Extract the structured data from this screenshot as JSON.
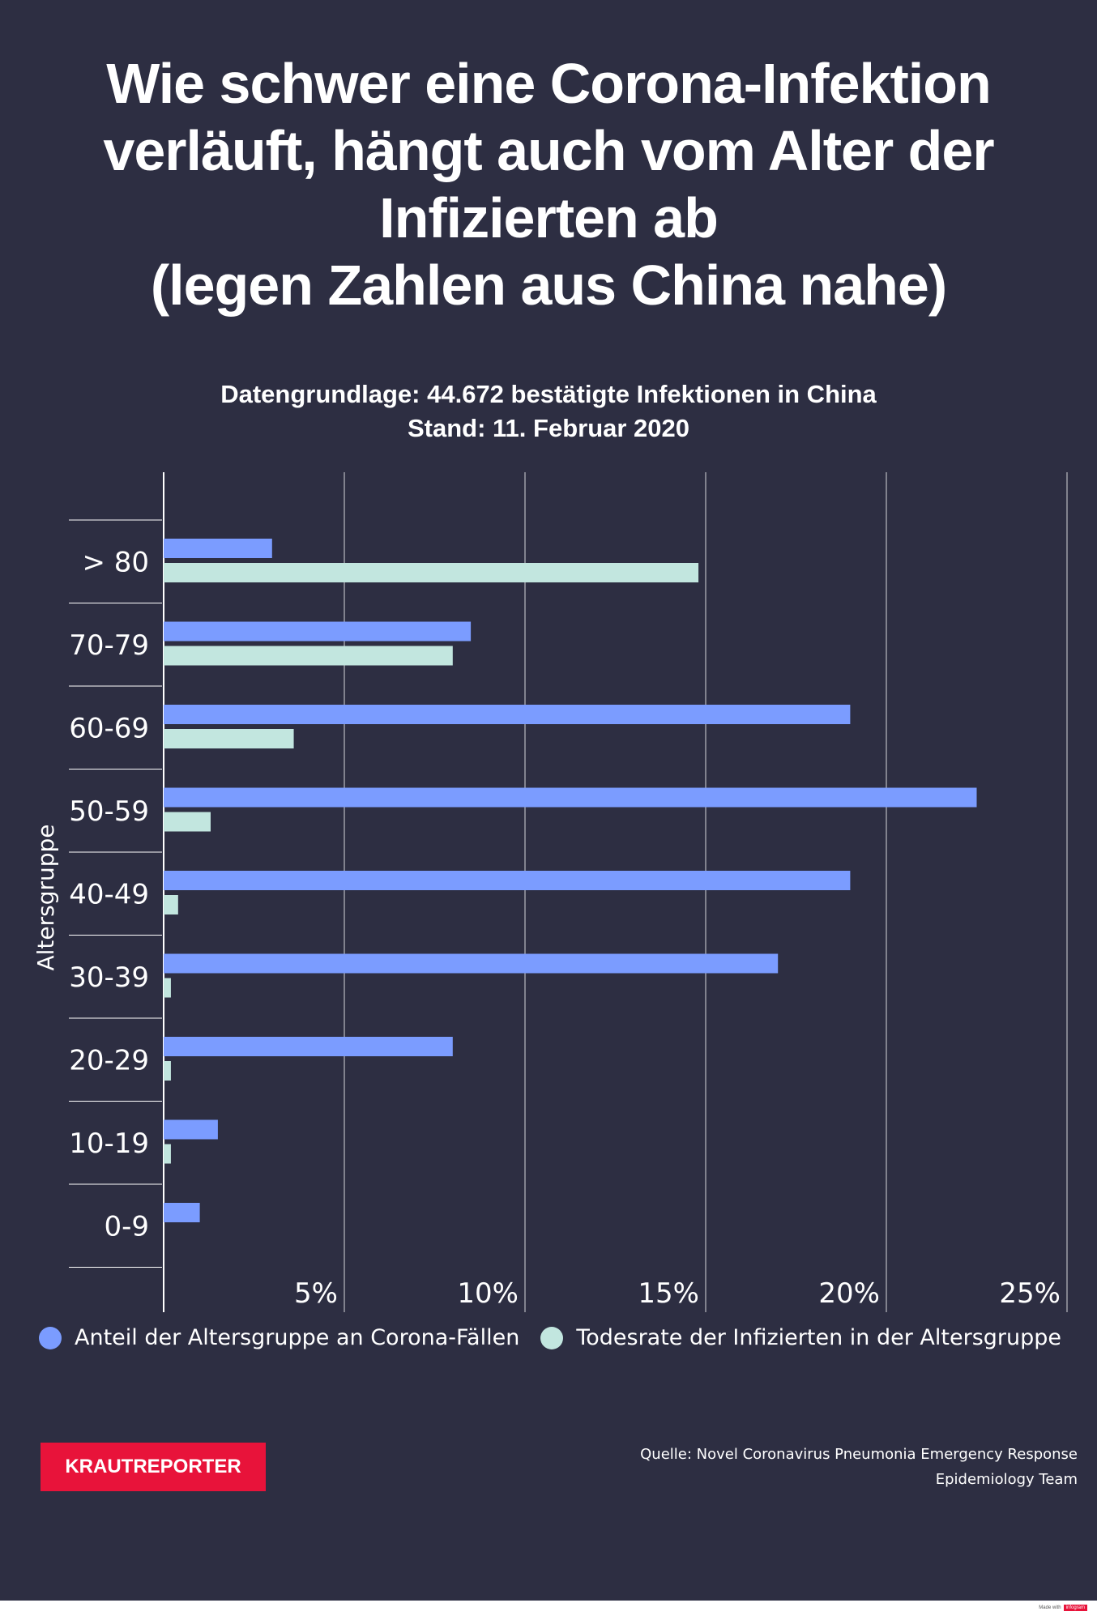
{
  "title": "Wie schwer eine Corona-Infektion\nverläuft, hängt auch vom Alter der\nInfizierten ab\n(legen Zahlen aus China nahe)",
  "subtitle": "Datengrundlage: 44.672 bestätigte Infektionen in China\nStand: 11. Februar 2020",
  "chart_data": {
    "type": "bar",
    "orientation": "horizontal",
    "categories": [
      "> 80",
      "70-79",
      "60-69",
      "50-59",
      "40-49",
      "30-39",
      "20-29",
      "10-19",
      "0-9"
    ],
    "series": [
      {
        "name": "Anteil der Altersgruppe an Corona-Fällen",
        "color": "#7b9cff",
        "values": [
          3.0,
          8.5,
          19.0,
          22.5,
          19.0,
          17.0,
          8.0,
          1.5,
          1.0
        ]
      },
      {
        "name": "Todesrate der Infizierten in der Altersgruppe",
        "color": "#c2e6df",
        "values": [
          14.8,
          8.0,
          3.6,
          1.3,
          0.4,
          0.2,
          0.2,
          0.2,
          0.0
        ]
      }
    ],
    "ylabel": "Altersgruppe",
    "xlim": [
      0,
      25
    ],
    "xticks": [
      5,
      10,
      15,
      20,
      25
    ],
    "xtick_labels": [
      "5%",
      "10%",
      "15%",
      "20%",
      "25%"
    ],
    "grid": true,
    "legend_position": "bottom"
  },
  "branding": {
    "name": "KRAUTREPORTER",
    "color": "#e8133a"
  },
  "source": "Quelle: Novel Coronavirus Pneumonia Emergency Response\nEpidemiology Team",
  "footer": {
    "made_with": "Made with",
    "tool": "infogram"
  },
  "colors": {
    "background": "#2d2e42",
    "text": "#ffffff"
  }
}
